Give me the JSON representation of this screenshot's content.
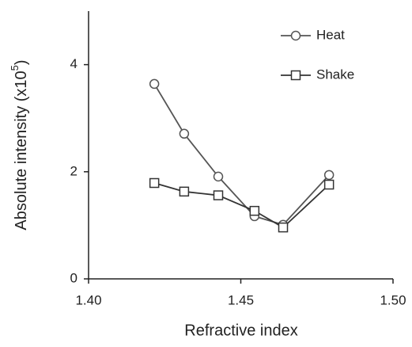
{
  "chart_data": {
    "type": "line",
    "xlabel": "Refractive index",
    "ylabel_parts": [
      "Absolute intensity (x10",
      "5",
      ")"
    ],
    "x": [
      1.4216,
      1.4314,
      1.4426,
      1.4545,
      1.4639,
      1.479
    ],
    "series": [
      {
        "name": "Heat",
        "color": "#555555",
        "marker": "circle",
        "values": [
          3.64,
          2.71,
          1.91,
          1.17,
          1.01,
          1.94
        ]
      },
      {
        "name": "Shake",
        "color": "#333333",
        "marker": "square",
        "values": [
          1.79,
          1.63,
          1.56,
          1.27,
          0.96,
          1.76
        ]
      }
    ],
    "xlim": [
      1.4,
      1.5
    ],
    "xticks": [
      {
        "value": 1.4,
        "label": "1.40"
      },
      {
        "value": 1.45,
        "label": "1.45"
      },
      {
        "value": 1.5,
        "label": "1.50"
      }
    ],
    "ylim": [
      0,
      5
    ],
    "yticks": [
      0,
      2,
      4
    ],
    "legend": "upper right"
  }
}
